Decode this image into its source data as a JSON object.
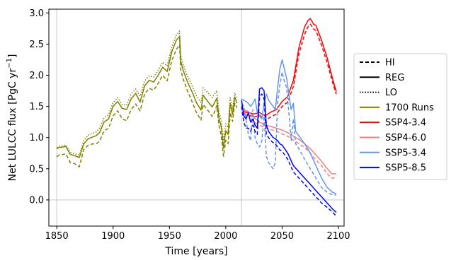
{
  "chart_data": {
    "type": "line",
    "title": "",
    "xlabel": "Time [years]",
    "ylabel": "Net LULCC flux [PgC yr",
    "ylabel_sup": "−1",
    "ylabel_end": "]",
    "xlim": [
      1843,
      2105
    ],
    "ylim": [
      -0.42,
      3.06
    ],
    "xticks": [
      1850,
      1900,
      1950,
      2000,
      2050,
      2100
    ],
    "yticks": [
      0.0,
      0.5,
      1.0,
      1.5,
      2.0,
      2.5,
      3.0
    ],
    "ytick_labels": [
      "0.0",
      "0.5",
      "1.0",
      "1.5",
      "2.0",
      "2.5",
      "3.0"
    ],
    "reference_lines": {
      "vertical": [
        1850,
        2014
      ],
      "horizontal": [
        0.0
      ]
    },
    "grid": false,
    "legend_position": "right",
    "legend": [
      {
        "label": "HI",
        "style": "dashed",
        "color": "#000000"
      },
      {
        "label": "REG",
        "style": "solid",
        "color": "#000000"
      },
      {
        "label": "LO",
        "style": "dotted",
        "color": "#000000"
      },
      {
        "label": "1700 Runs",
        "style": "solid",
        "color": "#808000"
      },
      {
        "label": "SSP4-3.4",
        "style": "solid",
        "color": "#ff0000"
      },
      {
        "label": "SSP4-6.0",
        "style": "solid",
        "color": "#f08080"
      },
      {
        "label": "SSP5-3.4",
        "style": "solid",
        "color": "#6495ed"
      },
      {
        "label": "SSP5-8.5",
        "style": "solid",
        "color": "#0000ff"
      }
    ],
    "series": [
      {
        "group": "1700 Runs",
        "variant": "REG",
        "color": "#808000",
        "x": [
          1850,
          1852,
          1856,
          1858,
          1862,
          1866,
          1870,
          1874,
          1878,
          1882,
          1885,
          1888,
          1892,
          1896,
          1900,
          1904,
          1908,
          1912,
          1916,
          1920,
          1924,
          1928,
          1932,
          1936,
          1940,
          1944,
          1948,
          1952,
          1956,
          1959,
          1960,
          1962,
          1966,
          1970,
          1974,
          1978,
          1980,
          1984,
          1988,
          1990,
          1992,
          1994,
          1996,
          1998,
          2000,
          2002,
          2004,
          2006,
          2008,
          2010
        ],
        "y": [
          0.82,
          0.84,
          0.85,
          0.86,
          0.73,
          0.71,
          0.68,
          0.9,
          0.98,
          1.01,
          1.03,
          1.08,
          1.25,
          1.3,
          1.5,
          1.58,
          1.47,
          1.45,
          1.62,
          1.71,
          1.57,
          1.83,
          1.92,
          1.89,
          2.0,
          2.13,
          2.06,
          2.37,
          2.56,
          2.62,
          2.23,
          2.09,
          1.89,
          1.74,
          1.56,
          1.44,
          1.68,
          1.58,
          1.49,
          1.56,
          1.63,
          1.31,
          1.17,
          0.83,
          1.11,
          1.05,
          1.55,
          1.37,
          1.65,
          1.55
        ]
      },
      {
        "group": "1700 Runs",
        "variant": "HI",
        "color": "#808000",
        "x": [
          1850,
          1852,
          1856,
          1858,
          1862,
          1866,
          1870,
          1874,
          1878,
          1882,
          1885,
          1888,
          1892,
          1896,
          1900,
          1904,
          1908,
          1912,
          1916,
          1920,
          1924,
          1928,
          1932,
          1936,
          1940,
          1944,
          1948,
          1952,
          1956,
          1959,
          1960,
          1962,
          1966,
          1970,
          1974,
          1978,
          1980,
          1984,
          1988,
          1990,
          1992,
          1994,
          1996,
          1998,
          2000,
          2002,
          2004,
          2006,
          2008,
          2010
        ],
        "y": [
          0.69,
          0.72,
          0.73,
          0.74,
          0.6,
          0.58,
          0.53,
          0.81,
          0.88,
          0.9,
          0.9,
          0.94,
          1.11,
          1.15,
          1.35,
          1.43,
          1.3,
          1.27,
          1.45,
          1.54,
          1.43,
          1.7,
          1.79,
          1.76,
          1.87,
          2.0,
          1.91,
          2.23,
          2.41,
          2.49,
          2.09,
          1.95,
          1.75,
          1.58,
          1.4,
          1.28,
          1.53,
          1.44,
          1.34,
          1.41,
          1.51,
          1.19,
          1.03,
          0.7,
          0.96,
          0.9,
          1.4,
          1.26,
          1.55,
          1.48
        ]
      },
      {
        "group": "1700 Runs",
        "variant": "LO",
        "color": "#808000",
        "x": [
          1850,
          1852,
          1856,
          1858,
          1862,
          1866,
          1870,
          1874,
          1878,
          1882,
          1885,
          1888,
          1892,
          1896,
          1900,
          1904,
          1908,
          1912,
          1916,
          1920,
          1924,
          1928,
          1932,
          1936,
          1940,
          1944,
          1948,
          1952,
          1956,
          1959,
          1960,
          1962,
          1966,
          1970,
          1974,
          1978,
          1980,
          1984,
          1988,
          1990,
          1992,
          1994,
          1996,
          1998,
          2000,
          2002,
          2004,
          2006,
          2008,
          2010
        ],
        "y": [
          0.84,
          0.86,
          0.87,
          0.88,
          0.76,
          0.74,
          0.72,
          0.95,
          1.04,
          1.07,
          1.09,
          1.15,
          1.32,
          1.37,
          1.56,
          1.64,
          1.53,
          1.52,
          1.7,
          1.78,
          1.66,
          1.91,
          1.99,
          1.97,
          2.08,
          2.21,
          2.15,
          2.45,
          2.64,
          2.71,
          2.32,
          2.18,
          1.98,
          1.84,
          1.67,
          1.56,
          1.8,
          1.72,
          1.64,
          1.7,
          1.75,
          1.42,
          1.27,
          0.95,
          1.22,
          1.16,
          1.64,
          1.45,
          1.72,
          1.62
        ]
      },
      {
        "group": "SSP4-3.4",
        "variant": "REG",
        "color": "#ff0000",
        "x": [
          2015,
          2020,
          2025,
          2030,
          2035,
          2040,
          2045,
          2050,
          2055,
          2060,
          2065,
          2070,
          2073,
          2075,
          2078,
          2080,
          2085,
          2090,
          2095,
          2098
        ],
        "y": [
          1.42,
          1.4,
          1.38,
          1.4,
          1.35,
          1.41,
          1.45,
          1.58,
          1.66,
          1.92,
          2.45,
          2.78,
          2.88,
          2.91,
          2.82,
          2.8,
          2.56,
          2.28,
          1.93,
          1.74
        ]
      },
      {
        "group": "SSP4-3.4",
        "variant": "HI",
        "color": "#ff0000",
        "x": [
          2015,
          2020,
          2025,
          2030,
          2035,
          2040,
          2045,
          2050,
          2055,
          2060,
          2065,
          2070,
          2073,
          2075,
          2078,
          2080,
          2085,
          2090,
          2095,
          2098
        ],
        "y": [
          1.38,
          1.36,
          1.33,
          1.36,
          1.28,
          1.33,
          1.38,
          1.5,
          1.57,
          1.82,
          2.35,
          2.66,
          2.78,
          2.82,
          2.74,
          2.72,
          2.48,
          2.2,
          1.87,
          1.7
        ]
      },
      {
        "group": "SSP4-6.0",
        "variant": "REG",
        "color": "#f08080",
        "x": [
          2015,
          2020,
          2025,
          2030,
          2035,
          2040,
          2045,
          2050,
          2055,
          2060,
          2065,
          2070,
          2075,
          2080,
          2085,
          2090,
          2094,
          2098
        ],
        "y": [
          1.45,
          1.42,
          1.32,
          1.25,
          1.2,
          1.18,
          1.15,
          1.12,
          1.08,
          1.02,
          0.97,
          0.9,
          0.82,
          0.72,
          0.62,
          0.5,
          0.42,
          0.42
        ]
      },
      {
        "group": "SSP4-6.0",
        "variant": "HI",
        "color": "#f08080",
        "x": [
          2015,
          2020,
          2025,
          2030,
          2035,
          2040,
          2045,
          2050,
          2055,
          2060,
          2065,
          2070,
          2075,
          2080,
          2085,
          2090,
          2094,
          2098
        ],
        "y": [
          1.4,
          1.38,
          1.25,
          1.2,
          1.15,
          1.13,
          1.1,
          1.06,
          1.02,
          0.96,
          0.9,
          0.84,
          0.75,
          0.64,
          0.55,
          0.42,
          0.35,
          0.36
        ]
      },
      {
        "group": "SSP5-3.4",
        "variant": "REG",
        "color": "#6495ed",
        "x": [
          2014,
          2016,
          2018,
          2020,
          2022,
          2024,
          2026,
          2028,
          2030,
          2032,
          2034,
          2036,
          2038,
          2040,
          2042,
          2044,
          2046,
          2048,
          2050,
          2052,
          2054,
          2056,
          2058,
          2060,
          2062,
          2064,
          2066,
          2068,
          2070,
          2075,
          2080,
          2085,
          2090,
          2095,
          2098
        ],
        "y": [
          1.62,
          1.6,
          1.58,
          1.55,
          1.5,
          1.55,
          1.62,
          1.4,
          1.35,
          1.3,
          1.55,
          1.7,
          1.6,
          1.55,
          1.5,
          1.45,
          1.8,
          2.1,
          2.25,
          2.1,
          1.95,
          1.7,
          1.45,
          1.55,
          1.1,
          1.05,
          1.0,
          0.95,
          0.9,
          0.75,
          0.55,
          0.35,
          0.2,
          0.12,
          0.1
        ]
      },
      {
        "group": "SSP5-3.4",
        "variant": "HI",
        "color": "#6495ed",
        "x": [
          2014,
          2016,
          2018,
          2020,
          2022,
          2024,
          2026,
          2028,
          2030,
          2032,
          2034,
          2036,
          2038,
          2040,
          2042,
          2044,
          2046,
          2048,
          2050,
          2052,
          2054,
          2056,
          2058,
          2060,
          2062,
          2064,
          2066,
          2068,
          2070,
          2075,
          2080,
          2085,
          2090,
          2095,
          2098
        ],
        "y": [
          1.55,
          1.5,
          1.3,
          1.05,
          0.95,
          1.45,
          1.0,
          0.9,
          0.85,
          0.95,
          1.35,
          0.7,
          0.6,
          0.55,
          0.5,
          0.6,
          1.55,
          1.85,
          2.05,
          1.9,
          1.8,
          1.4,
          0.95,
          1.3,
          0.9,
          0.85,
          0.78,
          0.72,
          0.65,
          0.5,
          0.35,
          0.2,
          0.12,
          0.08,
          0.08
        ]
      },
      {
        "group": "SSP5-8.5",
        "variant": "REG",
        "color": "#0000ff",
        "x": [
          2014,
          2016,
          2018,
          2020,
          2022,
          2024,
          2026,
          2028,
          2030,
          2032,
          2034,
          2036,
          2038,
          2040,
          2042,
          2044,
          2046,
          2048,
          2050,
          2055,
          2060,
          2065,
          2070,
          2075,
          2080,
          2085,
          2090,
          2095,
          2098
        ],
        "y": [
          1.6,
          1.35,
          1.3,
          1.4,
          1.25,
          1.3,
          1.2,
          1.15,
          1.78,
          1.8,
          1.75,
          1.2,
          1.1,
          1.05,
          1.0,
          0.98,
          0.95,
          0.9,
          0.88,
          0.75,
          0.55,
          0.45,
          0.35,
          0.25,
          0.15,
          0.05,
          -0.05,
          -0.15,
          -0.2
        ]
      },
      {
        "group": "SSP5-8.5",
        "variant": "HI",
        "color": "#0000ff",
        "x": [
          2014,
          2016,
          2018,
          2020,
          2022,
          2024,
          2026,
          2028,
          2030,
          2032,
          2034,
          2036,
          2038,
          2040,
          2042,
          2044,
          2046,
          2048,
          2050,
          2055,
          2060,
          2065,
          2070,
          2075,
          2080,
          2085,
          2090,
          2095,
          2098
        ],
        "y": [
          1.5,
          1.25,
          1.15,
          1.15,
          1.1,
          1.2,
          1.1,
          1.05,
          1.65,
          1.7,
          1.62,
          1.05,
          1.0,
          0.95,
          0.92,
          0.9,
          0.85,
          0.8,
          0.78,
          0.65,
          0.45,
          0.35,
          0.25,
          0.15,
          0.05,
          -0.05,
          -0.12,
          -0.2,
          -0.26
        ]
      }
    ]
  }
}
